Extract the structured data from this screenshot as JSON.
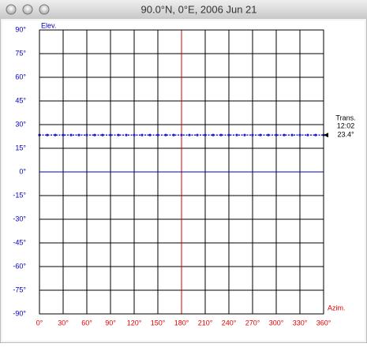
{
  "window": {
    "title": "90.0°N, 0°E, 2006 Jun 21"
  },
  "chart_data": {
    "type": "line",
    "ylabel": "Elev.",
    "xlabel": "Azim.",
    "xlim": [
      0,
      360
    ],
    "ylim": [
      -90,
      90
    ],
    "xticks": [
      {
        "value": 0,
        "label": "0°"
      },
      {
        "value": 30,
        "label": "30°"
      },
      {
        "value": 60,
        "label": "60°"
      },
      {
        "value": 90,
        "label": "90°"
      },
      {
        "value": 120,
        "label": "120°"
      },
      {
        "value": 150,
        "label": "150°"
      },
      {
        "value": 180,
        "label": "180°"
      },
      {
        "value": 210,
        "label": "210°"
      },
      {
        "value": 240,
        "label": "240°"
      },
      {
        "value": 270,
        "label": "270°"
      },
      {
        "value": 300,
        "label": "300°"
      },
      {
        "value": 330,
        "label": "330°"
      },
      {
        "value": 360,
        "label": "360°"
      }
    ],
    "yticks": [
      {
        "value": 90,
        "label": "90°"
      },
      {
        "value": 75,
        "label": "75°"
      },
      {
        "value": 60,
        "label": "60°"
      },
      {
        "value": 45,
        "label": "45°"
      },
      {
        "value": 30,
        "label": "30°"
      },
      {
        "value": 15,
        "label": "15°"
      },
      {
        "value": 0,
        "label": "0°"
      },
      {
        "value": -15,
        "label": "-15°"
      },
      {
        "value": -30,
        "label": "-30°"
      },
      {
        "value": -45,
        "label": "-45°"
      },
      {
        "value": -60,
        "label": "-60°"
      },
      {
        "value": -75,
        "label": "-75°"
      },
      {
        "value": -90,
        "label": "-90°"
      }
    ],
    "grid": true,
    "xtick_color": "#e00000",
    "ytick_color": "#0000c0",
    "highlight_x": {
      "value": 180,
      "color": "#d00000"
    },
    "highlight_y": {
      "value": 0,
      "color": "#0000c0"
    },
    "x": [
      0,
      10,
      20,
      30,
      40,
      50,
      60,
      70,
      80,
      90,
      100,
      110,
      120,
      130,
      140,
      150,
      160,
      170,
      180,
      190,
      200,
      210,
      220,
      230,
      240,
      250,
      260,
      270,
      280,
      290,
      300,
      310,
      320,
      330,
      340,
      350,
      360
    ],
    "series": [
      {
        "color": "#2020d0",
        "values": [
          23.4,
          23.4,
          23.4,
          23.4,
          23.4,
          23.4,
          23.4,
          23.4,
          23.4,
          23.4,
          23.4,
          23.4,
          23.4,
          23.4,
          23.4,
          23.4,
          23.4,
          23.4,
          23.4,
          23.4,
          23.4,
          23.4,
          23.4,
          23.4,
          23.4,
          23.4,
          23.4,
          23.4,
          23.4,
          23.4,
          23.4,
          23.4,
          23.4,
          23.4,
          23.4,
          23.4,
          23.4
        ]
      }
    ],
    "transit": {
      "label": "Trans.",
      "time": "12:02",
      "elevation": 23.4,
      "elevation_label": "23.4°"
    }
  }
}
